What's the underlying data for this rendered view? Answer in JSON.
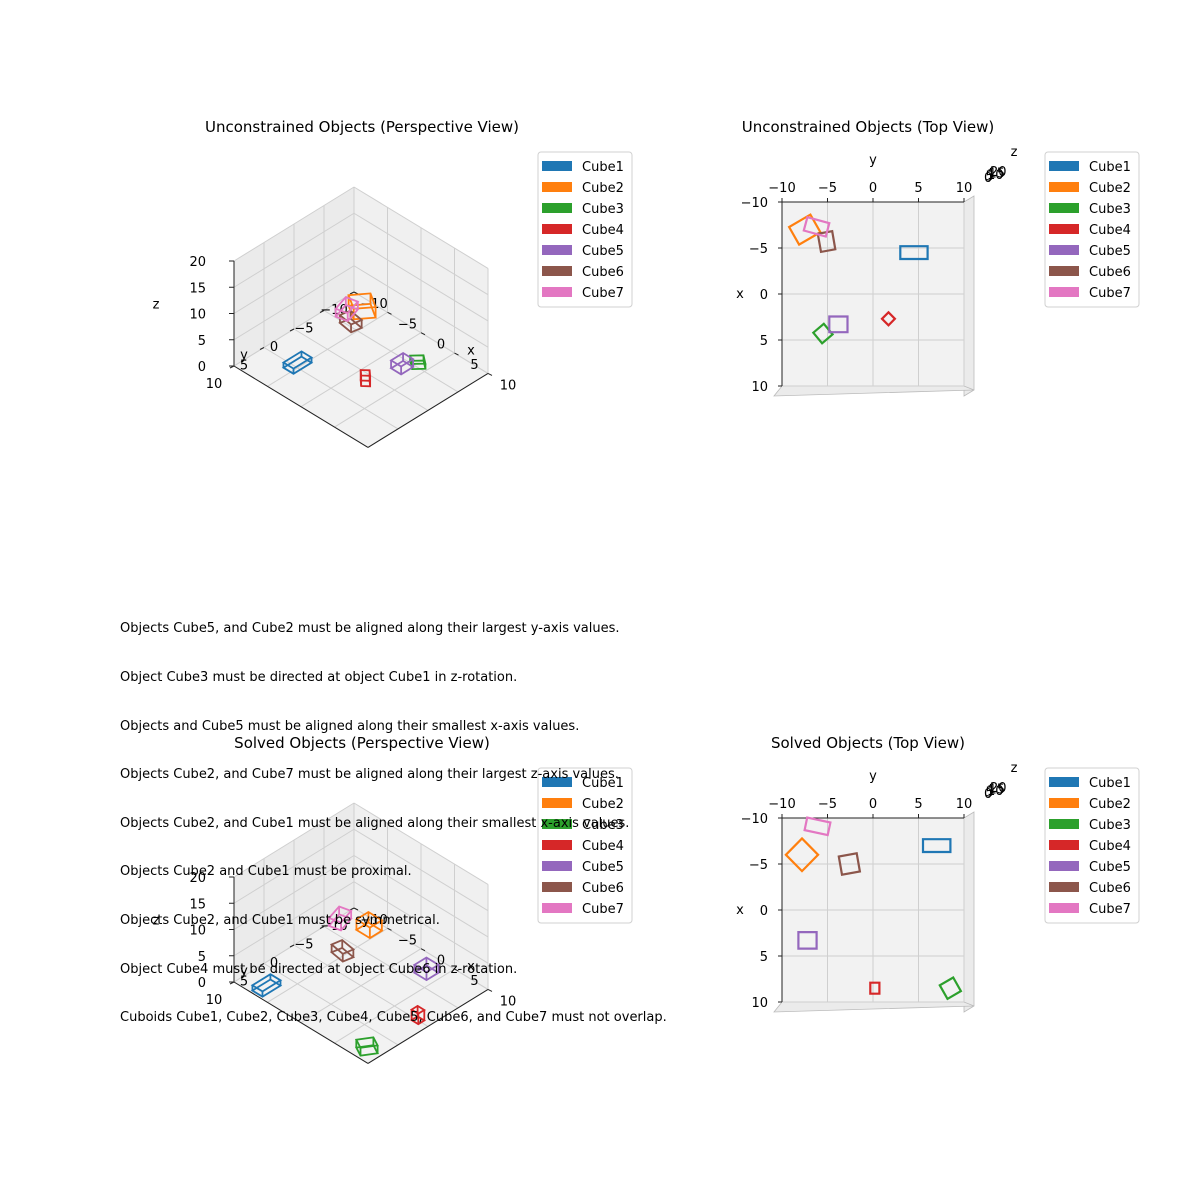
{
  "constraints": [
    "Objects Cube5, and Cube2 must be aligned along their largest y-axis values.",
    "Object Cube3 must be directed at object Cube1 in z-rotation.",
    "Objects and Cube5 must be aligned along their smallest x-axis values.",
    "Objects Cube2, and Cube7 must be aligned along their largest z-axis values.",
    "Objects Cube2, and Cube1 must be aligned along their smallest x-axis values.",
    "Objects Cube2 and Cube1 must be proximal.",
    "Objects Cube2, and Cube1 must be symmetrical.",
    "Object Cube4 must be directed at object Cube6 in z-rotation.",
    "Cuboids Cube1, Cube2, Cube3, Cube4, Cube5, Cube6, and Cube7 must not overlap."
  ],
  "colors": {
    "Cube1": "#1f77b4",
    "Cube2": "#ff7f0e",
    "Cube3": "#2ca02c",
    "Cube4": "#d62728",
    "Cube5": "#9467bd",
    "Cube6": "#8c564b",
    "Cube7": "#e377c2"
  },
  "chart_data": [
    {
      "type": "scatter",
      "title": "Unconstrained Objects (Perspective View)",
      "view": "perspective",
      "xlabel": "x",
      "ylabel": "y",
      "zlabel": "z",
      "xlim": [
        -10,
        10
      ],
      "ylim": [
        -10,
        10
      ],
      "zlim": [
        0,
        20
      ],
      "x_ticks": [
        "−10",
        "−5",
        "0",
        "5",
        "10"
      ],
      "y_ticks": [
        "−10",
        "−5",
        "0",
        "5",
        "10"
      ],
      "z_ticks": [
        "0",
        "5",
        "10",
        "15",
        "20"
      ],
      "legend": [
        "Cube1",
        "Cube2",
        "Cube3",
        "Cube4",
        "Cube5",
        "Cube6",
        "Cube7"
      ],
      "legend_position": "right",
      "grid": true,
      "objects": [
        {
          "name": "Cube1",
          "center": [
            -5,
            5,
            1
          ],
          "size": [
            1.5,
            3,
            1
          ],
          "rotation_deg": 0
        },
        {
          "name": "Cube2",
          "center": [
            -7,
            -8,
            1
          ],
          "size": [
            2.5,
            2.5,
            2
          ],
          "rotation_deg": 35
        },
        {
          "name": "Cube3",
          "center": [
            4,
            -5,
            1
          ],
          "size": [
            1.5,
            1.5,
            1
          ],
          "rotation_deg": 40
        },
        {
          "name": "Cube4",
          "center": [
            2,
            1.5,
            1
          ],
          "size": [
            1,
            1,
            2
          ],
          "rotation_deg": 45
        },
        {
          "name": "Cube5",
          "center": [
            3,
            -3.5,
            1
          ],
          "size": [
            1.5,
            2,
            1.5
          ],
          "rotation_deg": 0
        },
        {
          "name": "Cube6",
          "center": [
            -6,
            -5,
            1
          ],
          "size": [
            2,
            1.5,
            1.5
          ],
          "rotation_deg": 10
        },
        {
          "name": "Cube7",
          "center": [
            -7.5,
            -6,
            1.5
          ],
          "size": [
            1.5,
            2.5,
            1.5
          ],
          "rotation_deg": -15
        }
      ]
    },
    {
      "type": "scatter",
      "title": "Unconstrained Objects (Top View)",
      "view": "top",
      "xlabel": "x",
      "ylabel": "y",
      "zlabel": "z",
      "xlim": [
        -10,
        10
      ],
      "ylim": [
        -10,
        10
      ],
      "x_ticks": [
        "−10",
        "−5",
        "0",
        "5",
        "10"
      ],
      "y_ticks": [
        "−10",
        "−5",
        "0",
        "5",
        "10"
      ],
      "z_ticks": [
        "0",
        "5",
        "10",
        "15",
        "20"
      ],
      "legend": [
        "Cube1",
        "Cube2",
        "Cube3",
        "Cube4",
        "Cube5",
        "Cube6",
        "Cube7"
      ],
      "legend_position": "right",
      "grid": true,
      "objects": [
        {
          "name": "Cube1",
          "center": [
            -4.5,
            4.5
          ],
          "size": [
            1.4,
            3
          ],
          "rotation_deg": 0
        },
        {
          "name": "Cube2",
          "center": [
            -7,
            -7.5
          ],
          "size": [
            2.2,
            2.7
          ],
          "rotation_deg": 30
        },
        {
          "name": "Cube3",
          "center": [
            4.3,
            -5.5
          ],
          "size": [
            1.5,
            1.5
          ],
          "rotation_deg": 40
        },
        {
          "name": "Cube4",
          "center": [
            2.7,
            1.7
          ],
          "size": [
            1,
            1
          ],
          "rotation_deg": 45
        },
        {
          "name": "Cube5",
          "center": [
            3.3,
            -3.8
          ],
          "size": [
            1.7,
            2
          ],
          "rotation_deg": 0
        },
        {
          "name": "Cube6",
          "center": [
            -5.7,
            -5.1
          ],
          "size": [
            2,
            1.6
          ],
          "rotation_deg": 10
        },
        {
          "name": "Cube7",
          "center": [
            -7.3,
            -6.2
          ],
          "size": [
            1.5,
            2.5
          ],
          "rotation_deg": -15
        }
      ]
    },
    {
      "type": "scatter",
      "title": "Solved Objects (Perspective View)",
      "view": "perspective",
      "xlabel": "x",
      "ylabel": "y",
      "zlabel": "z",
      "xlim": [
        -10,
        10
      ],
      "ylim": [
        -10,
        10
      ],
      "zlim": [
        0,
        20
      ],
      "x_ticks": [
        "−10",
        "−5",
        "0",
        "5",
        "10"
      ],
      "y_ticks": [
        "−10",
        "−5",
        "0",
        "5",
        "10"
      ],
      "z_ticks": [
        "0",
        "5",
        "10",
        "15",
        "20"
      ],
      "legend": [
        "Cube1",
        "Cube2",
        "Cube3",
        "Cube4",
        "Cube5",
        "Cube6",
        "Cube7"
      ],
      "legend_position": "right",
      "grid": true,
      "objects": [
        {
          "name": "Cube1",
          "center": [
            -6.5,
            8.5,
            1
          ],
          "size": [
            1.5,
            3,
            1
          ],
          "rotation_deg": 0
        },
        {
          "name": "Cube2",
          "center": [
            -5.5,
            -7.5,
            2
          ],
          "size": [
            2,
            2,
            2
          ],
          "rotation_deg": 0
        },
        {
          "name": "Cube3",
          "center": [
            8.5,
            8.5,
            1
          ],
          "size": [
            1.5,
            2,
            1.5
          ],
          "rotation_deg": 30
        },
        {
          "name": "Cube4",
          "center": [
            8.5,
            0,
            1
          ],
          "size": [
            1,
            1,
            2
          ],
          "rotation_deg": 0
        },
        {
          "name": "Cube5",
          "center": [
            3.5,
            -7,
            1
          ],
          "size": [
            1.8,
            2,
            1.5
          ],
          "rotation_deg": 0
        },
        {
          "name": "Cube6",
          "center": [
            -5,
            -2.5,
            1
          ],
          "size": [
            2,
            1.5,
            1.5
          ],
          "rotation_deg": 10
        },
        {
          "name": "Cube7",
          "center": [
            -8.5,
            -6,
            2
          ],
          "size": [
            1.5,
            2.5,
            1.5
          ],
          "rotation_deg": -15
        }
      ]
    },
    {
      "type": "scatter",
      "title": "Solved Objects (Top View)",
      "view": "top",
      "xlabel": "x",
      "ylabel": "y",
      "zlabel": "z",
      "xlim": [
        -10,
        10
      ],
      "ylim": [
        -10,
        10
      ],
      "x_ticks": [
        "−10",
        "−5",
        "0",
        "5",
        "10"
      ],
      "y_ticks": [
        "−10",
        "−5",
        "0",
        "5",
        "10"
      ],
      "z_ticks": [
        "0",
        "5",
        "10",
        "15",
        "20"
      ],
      "legend": [
        "Cube1",
        "Cube2",
        "Cube3",
        "Cube4",
        "Cube5",
        "Cube6",
        "Cube7"
      ],
      "legend_position": "right",
      "grid": true,
      "objects": [
        {
          "name": "Cube1",
          "center": [
            -7,
            7
          ],
          "size": [
            1.4,
            3
          ],
          "rotation_deg": 0
        },
        {
          "name": "Cube2",
          "center": [
            -6,
            -7.8
          ],
          "size": [
            2.5,
            2.5
          ],
          "rotation_deg": 45
        },
        {
          "name": "Cube3",
          "center": [
            8.5,
            8.5
          ],
          "size": [
            1.7,
            1.7
          ],
          "rotation_deg": 30
        },
        {
          "name": "Cube4",
          "center": [
            8.5,
            0.2
          ],
          "size": [
            1.2,
            1
          ],
          "rotation_deg": 0
        },
        {
          "name": "Cube5",
          "center": [
            3.3,
            -7.2
          ],
          "size": [
            1.8,
            2
          ],
          "rotation_deg": 0
        },
        {
          "name": "Cube6",
          "center": [
            -5,
            -2.6
          ],
          "size": [
            2,
            2
          ],
          "rotation_deg": 10
        },
        {
          "name": "Cube7",
          "center": [
            -9.1,
            -6.1
          ],
          "size": [
            1.4,
            2.6
          ],
          "rotation_deg": -12
        }
      ]
    }
  ]
}
